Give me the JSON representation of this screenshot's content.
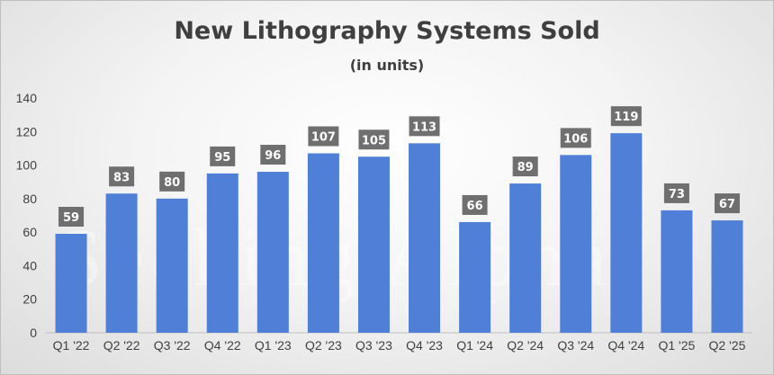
{
  "chart_data": {
    "type": "bar",
    "title": "New Lithography Systems Sold",
    "subtitle": "(in units)",
    "xlabel": "",
    "ylabel": "",
    "categories": [
      "Q1 '22",
      "Q2 '22",
      "Q3 '22",
      "Q4 '22",
      "Q1 '23",
      "Q2 '23",
      "Q3 '23",
      "Q4 '23",
      "Q1 '24",
      "Q2 '24",
      "Q3 '24",
      "Q4 '24",
      "Q1 '25",
      "Q2 '25"
    ],
    "values": [
      59,
      83,
      80,
      95,
      96,
      107,
      105,
      113,
      66,
      89,
      106,
      119,
      73,
      67
    ],
    "ylim": [
      0,
      140
    ],
    "yticks": [
      0,
      20,
      40,
      60,
      80,
      100,
      120,
      140
    ],
    "grid": false,
    "legend": "none",
    "colors": {
      "bar": "#4f7fd6",
      "label_box": "#6f6f6f"
    }
  },
  "watermark": "Seeking Alpha"
}
